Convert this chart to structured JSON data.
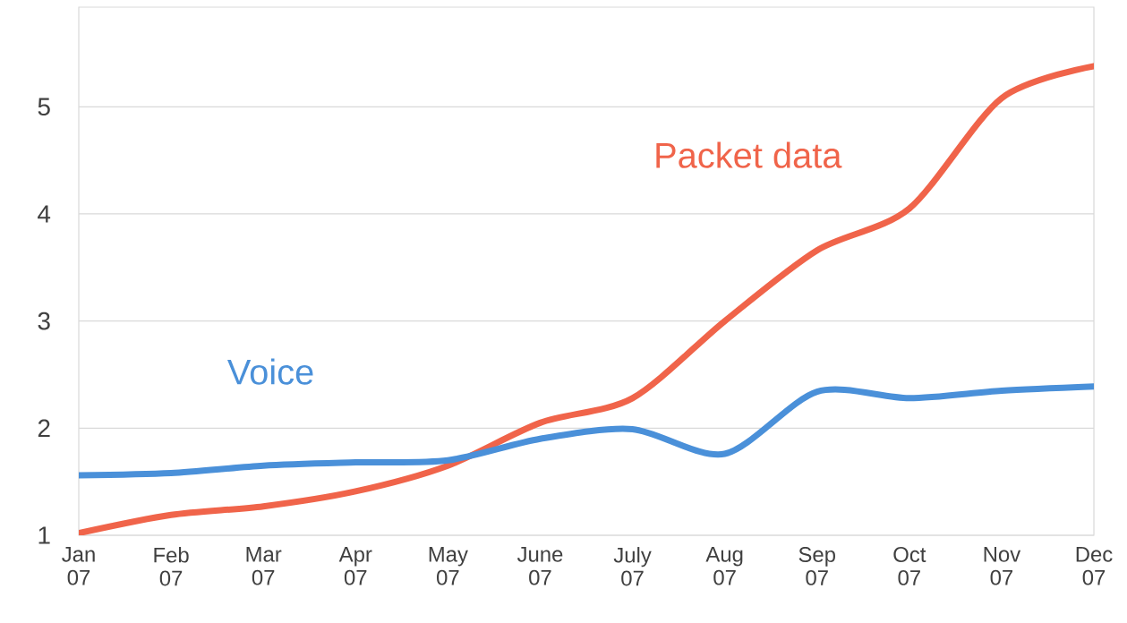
{
  "chart_data": {
    "type": "line",
    "categories": [
      "Jan 07",
      "Feb 07",
      "Mar 07",
      "Apr 07",
      "May 07",
      "June 07",
      "July 07",
      "Aug 07",
      "Sep 07",
      "Oct 07",
      "Nov 07",
      "Dec 07"
    ],
    "series": [
      {
        "name": "Packet data",
        "color": "#f0644a",
        "values": [
          1.02,
          1.19,
          1.27,
          1.41,
          1.65,
          2.05,
          2.28,
          3.0,
          3.66,
          4.05,
          5.08,
          5.38
        ]
      },
      {
        "name": "Voice",
        "color": "#4a90d9",
        "values": [
          1.56,
          1.58,
          1.65,
          1.68,
          1.7,
          1.9,
          1.99,
          1.76,
          2.34,
          2.28,
          2.35,
          2.39
        ]
      }
    ],
    "ylim": [
      1,
      5.93
    ],
    "yticks": [
      1,
      2,
      3,
      4,
      5
    ],
    "grid": "y",
    "marker": "none",
    "line_style": "solid"
  }
}
